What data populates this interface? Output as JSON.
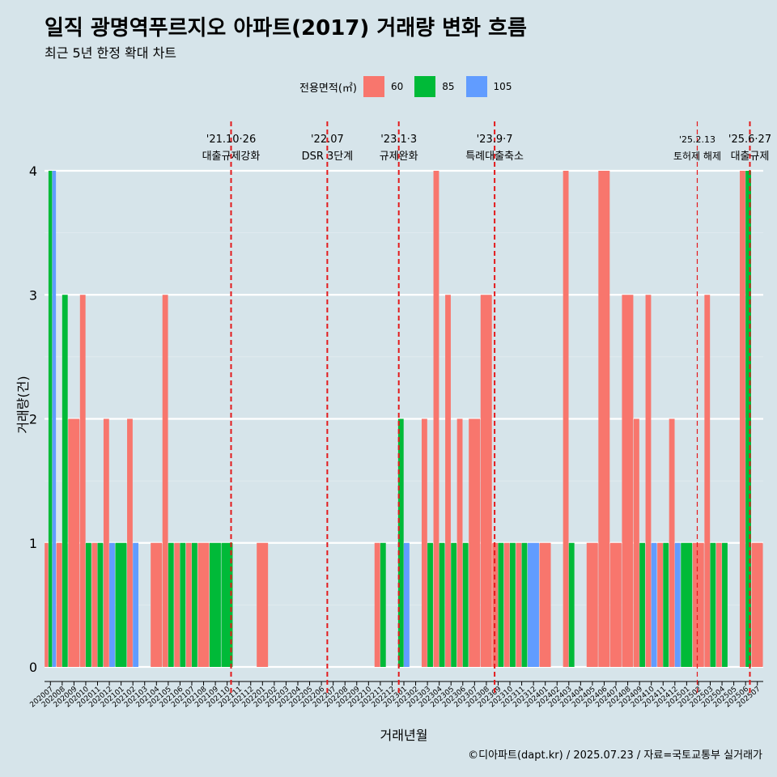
{
  "header": {
    "title": "일직 광명역푸르지오 아파트(2017) 거래량 변화 흐름",
    "subtitle": "최근 5년 한정 확대 차트"
  },
  "legend": {
    "title": "전용면적(㎡)",
    "items": [
      {
        "label": "60",
        "color": "#f8766d"
      },
      {
        "label": "85",
        "color": "#00ba38"
      },
      {
        "label": "105",
        "color": "#619cff"
      }
    ]
  },
  "caption": "©디아파트(dapt.kr) / 2025.07.23 / 자료=국토교통부 실거래가",
  "chart_data": {
    "type": "bar",
    "xlabel": "거래년월",
    "ylabel": "거래량(건)",
    "ylim": [
      0,
      4
    ],
    "yticks": [
      0,
      1,
      2,
      3,
      4
    ],
    "grid": true,
    "legend_position": "top",
    "categories": [
      "202007",
      "202008",
      "202009",
      "202010",
      "202011",
      "202012",
      "202101",
      "202102",
      "202103",
      "202104",
      "202105",
      "202106",
      "202107",
      "202108",
      "202109",
      "202110",
      "202111",
      "202112",
      "202201",
      "202202",
      "202203",
      "202204",
      "202205",
      "202206",
      "202207",
      "202208",
      "202209",
      "202210",
      "202211",
      "202212",
      "202301",
      "202302",
      "202303",
      "202304",
      "202305",
      "202306",
      "202307",
      "202308",
      "202309",
      "202310",
      "202311",
      "202312",
      "202401",
      "202402",
      "202403",
      "202404",
      "202405",
      "202406",
      "202407",
      "202408",
      "202409",
      "202410",
      "202411",
      "202412",
      "202501",
      "202502",
      "202503",
      "202504",
      "202505",
      "202506",
      "202507"
    ],
    "series": [
      {
        "name": "60",
        "color": "#f8766d",
        "values": [
          1,
          1,
          2,
          3,
          1,
          2,
          0,
          2,
          0,
          1,
          3,
          1,
          1,
          1,
          0,
          0,
          0,
          0,
          1,
          0,
          0,
          0,
          0,
          0,
          0,
          0,
          0,
          0,
          1,
          0,
          0,
          0,
          2,
          4,
          3,
          2,
          2,
          3,
          1,
          1,
          1,
          0,
          1,
          0,
          4,
          0,
          1,
          4,
          1,
          3,
          2,
          3,
          1,
          2,
          0,
          1,
          3,
          1,
          0,
          4,
          1
        ]
      },
      {
        "name": "85",
        "color": "#00ba38",
        "values": [
          4,
          3,
          0,
          1,
          1,
          0,
          1,
          0,
          0,
          0,
          1,
          1,
          1,
          0,
          1,
          1,
          0,
          0,
          0,
          0,
          0,
          0,
          0,
          0,
          0,
          0,
          0,
          0,
          1,
          0,
          2,
          0,
          1,
          1,
          1,
          1,
          0,
          0,
          1,
          1,
          1,
          0,
          0,
          0,
          1,
          0,
          0,
          0,
          0,
          0,
          1,
          0,
          1,
          0,
          1,
          0,
          1,
          1,
          0,
          4,
          0
        ]
      },
      {
        "name": "105",
        "color": "#619cff",
        "values": [
          4,
          0,
          0,
          0,
          0,
          1,
          0,
          1,
          0,
          0,
          0,
          0,
          0,
          0,
          0,
          0,
          0,
          0,
          0,
          0,
          0,
          0,
          0,
          0,
          0,
          0,
          0,
          0,
          0,
          0,
          1,
          0,
          0,
          0,
          0,
          0,
          0,
          0,
          0,
          0,
          0,
          1,
          0,
          0,
          0,
          0,
          0,
          0,
          0,
          0,
          0,
          1,
          0,
          1,
          0,
          0,
          0,
          0,
          0,
          0,
          0
        ]
      }
    ],
    "annotations": [
      {
        "date": "2021-10-26",
        "label_top": "'21.10·26",
        "label_bottom": "대출규제강화",
        "small": false
      },
      {
        "date": "2022-07",
        "label_top": "'22.07",
        "label_bottom": "DSR 3단계",
        "small": false
      },
      {
        "date": "2023-01-03",
        "label_top": "'23.1·3",
        "label_bottom": "규제완화",
        "small": false
      },
      {
        "date": "2023-09-07",
        "label_top": "'23.9·7",
        "label_bottom": "특례대출축소",
        "small": false
      },
      {
        "date": "2025-02-13",
        "label_top": "'25.2.13",
        "label_bottom": "토허제 해제",
        "small": true
      },
      {
        "date": "2025-06-27",
        "label_top": "'25.6·27",
        "label_bottom": "대출규제",
        "small": false
      }
    ]
  }
}
